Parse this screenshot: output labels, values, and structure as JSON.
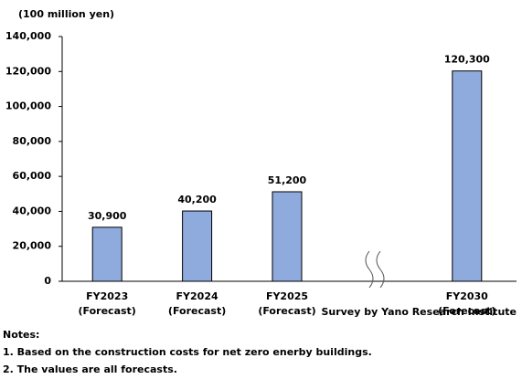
{
  "chart_data": {
    "type": "bar",
    "unit_label": "(100 million yen)",
    "categories": [
      "FY2023\n(Forecast)",
      "FY2024\n(Forecast)",
      "FY2025\n(Forecast)",
      null,
      "FY2030\n(Forecast)"
    ],
    "values": [
      30900,
      40200,
      51200,
      null,
      120300
    ],
    "value_labels": [
      "30,900",
      "40,200",
      "51,200",
      null,
      "120,300"
    ],
    "color": "#8faadc",
    "ylim": [
      0,
      140000
    ],
    "yticks": [
      {
        "value": 0,
        "label": "0"
      },
      {
        "value": 20000,
        "label": "20,000"
      },
      {
        "value": 40000,
        "label": "40,000"
      },
      {
        "value": 60000,
        "label": "60,000"
      },
      {
        "value": 80000,
        "label": "80,000"
      },
      {
        "value": 100000,
        "label": "100,000"
      },
      {
        "value": 120000,
        "label": "120,000"
      },
      {
        "value": 140000,
        "label": "140,000"
      }
    ],
    "grid": false,
    "source": "Survey by Yano Research Institute",
    "notes": [
      "Notes:",
      "1. Based on the construction costs for net zero enerby buildings.",
      "2. The values are all forecasts."
    ]
  }
}
